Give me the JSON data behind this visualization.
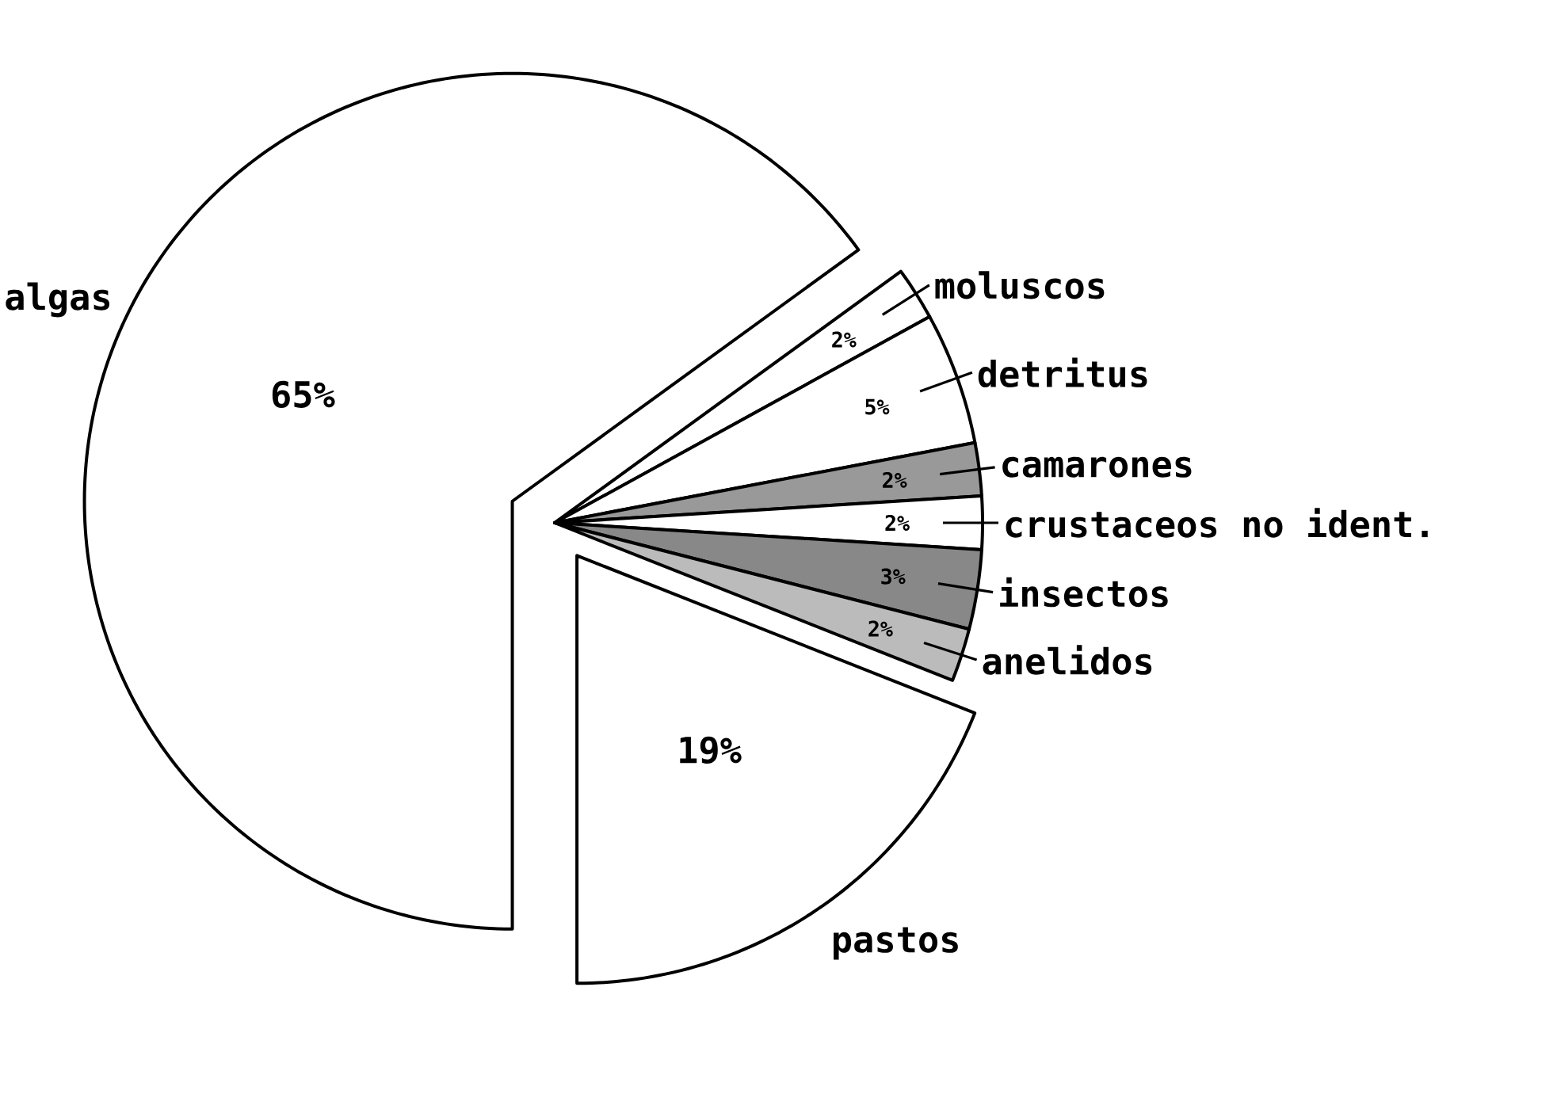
{
  "chart_data": {
    "type": "pie",
    "categories": [
      "algas",
      "moluscos",
      "detritus",
      "camarones",
      "crustaceos no ident.",
      "insectos",
      "anelidos",
      "pastos"
    ],
    "values": [
      65,
      2,
      5,
      2,
      2,
      3,
      2,
      19
    ],
    "value_labels": [
      "65%",
      "2%",
      "5%",
      "2%",
      "2%",
      "3%",
      "2%",
      "19%"
    ],
    "colors": [
      "#ffffff",
      "#ffffff",
      "#ffffff",
      "#999999",
      "#ffffff",
      "#888888",
      "#bbbbbb",
      "#ffffff"
    ]
  }
}
